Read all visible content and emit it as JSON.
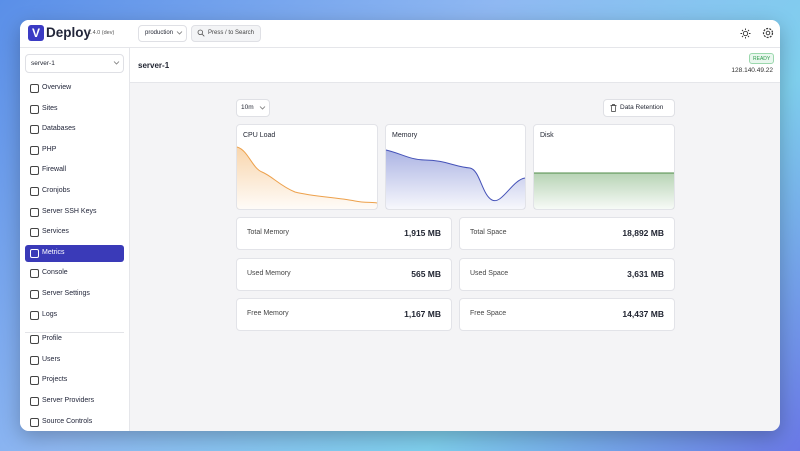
{
  "app": {
    "name": "Deploy",
    "version": "1.4.0 (dev)"
  },
  "topbar": {
    "project": "production",
    "search": "Press / to Search"
  },
  "sidebar": {
    "server": "server-1",
    "nav": [
      {
        "label": "Overview"
      },
      {
        "label": "Sites"
      },
      {
        "label": "Databases"
      },
      {
        "label": "PHP"
      },
      {
        "label": "Firewall"
      },
      {
        "label": "Cronjobs"
      },
      {
        "label": "Server SSH Keys"
      },
      {
        "label": "Services"
      },
      {
        "label": "Metrics",
        "active": true
      },
      {
        "label": "Console"
      },
      {
        "label": "Server Settings"
      },
      {
        "label": "Logs"
      },
      {
        "label": "Profile",
        "divider": true
      },
      {
        "label": "Users"
      },
      {
        "label": "Projects"
      },
      {
        "label": "Server Providers"
      },
      {
        "label": "Source Controls"
      }
    ]
  },
  "server": {
    "name": "server-1",
    "status": "READY",
    "ip": "128.140.49.22"
  },
  "metrics": {
    "range": "10m",
    "retention_button": "Data Retention",
    "charts": [
      "CPU Load",
      "Memory",
      "Disk"
    ],
    "stats": [
      {
        "label": "Total Memory",
        "value": "1,915 MB"
      },
      {
        "label": "Total Space",
        "value": "18,892 MB"
      },
      {
        "label": "Used Memory",
        "value": "565 MB"
      },
      {
        "label": "Used Space",
        "value": "3,631 MB"
      },
      {
        "label": "Free Memory",
        "value": "1,167 MB"
      },
      {
        "label": "Free Space",
        "value": "14,437 MB"
      }
    ]
  }
}
